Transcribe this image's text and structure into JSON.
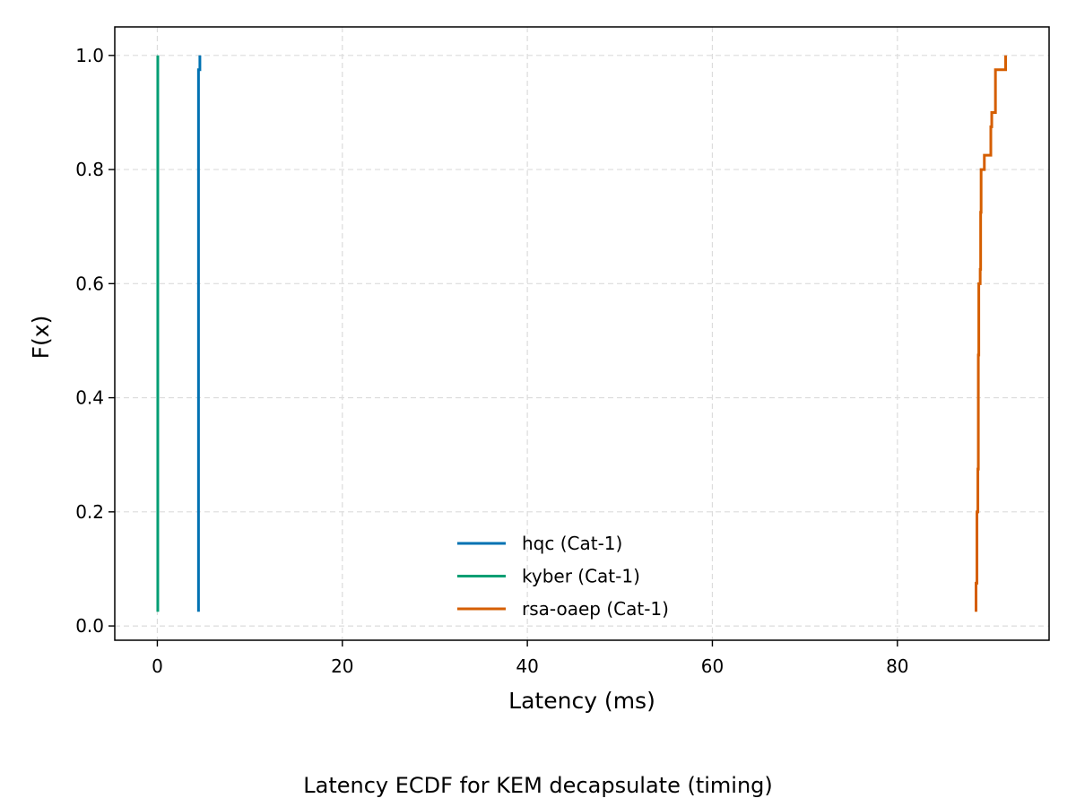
{
  "chart_data": {
    "type": "line",
    "subtype": "ecdf-step",
    "caption": "Latency ECDF for KEM decapsulate (timing)",
    "xlabel": "Latency (ms)",
    "ylabel": "F(x)",
    "xlim": [
      -4.6,
      96.4
    ],
    "ylim": [
      -0.025,
      1.05
    ],
    "xticks": [
      0,
      20,
      40,
      60,
      80
    ],
    "yticks": [
      0.0,
      0.2,
      0.4,
      0.6,
      0.8,
      1.0
    ],
    "xtick_labels": [
      "0",
      "20",
      "40",
      "60",
      "80"
    ],
    "ytick_labels": [
      "0.0",
      "0.2",
      "0.4",
      "0.6",
      "0.8",
      "1.0"
    ],
    "grid": true,
    "legend_position": "lower center",
    "series": [
      {
        "name": "hqc (Cat-1)",
        "color": "#0072B2",
        "points": [
          [
            4.45,
            0.025
          ],
          [
            4.45,
            0.975
          ],
          [
            4.6,
            0.975
          ],
          [
            4.6,
            1.0
          ]
        ]
      },
      {
        "name": "kyber (Cat-1)",
        "color": "#009E73",
        "points": [
          [
            0.05,
            0.025
          ],
          [
            0.05,
            1.0
          ]
        ]
      },
      {
        "name": "rsa-oaep (Cat-1)",
        "color": "#D55E00",
        "points": [
          [
            88.5,
            0.025
          ],
          [
            88.5,
            0.075
          ],
          [
            88.6,
            0.075
          ],
          [
            88.6,
            0.2
          ],
          [
            88.7,
            0.2
          ],
          [
            88.7,
            0.275
          ],
          [
            88.75,
            0.275
          ],
          [
            88.75,
            0.475
          ],
          [
            88.8,
            0.475
          ],
          [
            88.8,
            0.6
          ],
          [
            88.95,
            0.6
          ],
          [
            88.95,
            0.625
          ],
          [
            89.0,
            0.625
          ],
          [
            89.0,
            0.725
          ],
          [
            89.05,
            0.725
          ],
          [
            89.05,
            0.8
          ],
          [
            89.4,
            0.8
          ],
          [
            89.4,
            0.825
          ],
          [
            90.1,
            0.825
          ],
          [
            90.1,
            0.875
          ],
          [
            90.2,
            0.875
          ],
          [
            90.2,
            0.9
          ],
          [
            90.6,
            0.9
          ],
          [
            90.6,
            0.975
          ],
          [
            91.7,
            0.975
          ],
          [
            91.7,
            1.0
          ]
        ]
      }
    ]
  }
}
